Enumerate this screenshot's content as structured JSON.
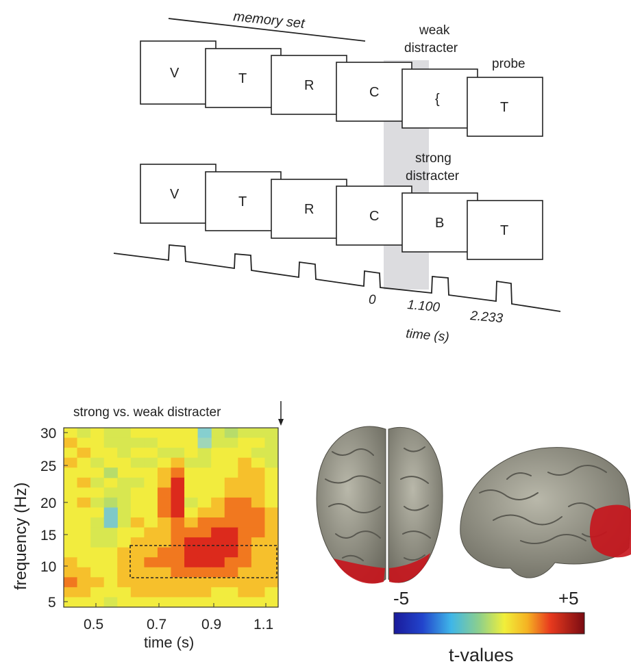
{
  "paradigm": {
    "memory_set_label": "memory set",
    "weak_distracter_label": "weak\ndistracter",
    "strong_distracter_label": "strong\ndistracter",
    "probe_label": "probe",
    "top_row": [
      "V",
      "T",
      "R",
      "C",
      "{",
      "T"
    ],
    "bottom_row": [
      "V",
      "T",
      "R",
      "C",
      "B",
      "T"
    ],
    "time_ticks": [
      "0",
      "1.100",
      "2.233"
    ],
    "time_label": "time (s)"
  },
  "tfr": {
    "title": "strong vs. weak distracter",
    "xlabel": "time (s)",
    "ylabel": "frequency (Hz)",
    "xticks": [
      "0.5",
      "0.7",
      "0.9",
      "1.1"
    ],
    "yticks": [
      "5",
      "10",
      "15",
      "20",
      "25",
      "30"
    ]
  },
  "colorbar": {
    "min_label": "-5",
    "max_label": "+5",
    "title": "t-values"
  }
}
